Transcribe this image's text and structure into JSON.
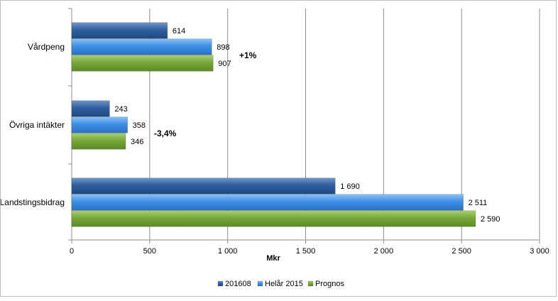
{
  "chart_data": {
    "type": "bar",
    "orientation": "horizontal",
    "categories": [
      "Vårdpeng",
      "Övriga intäkter",
      "Landstingsbidrag"
    ],
    "series": [
      {
        "name": "201608",
        "values": [
          614,
          243,
          1690
        ],
        "labels": [
          "614",
          "243",
          "1 690"
        ],
        "color": "#2f5f9e"
      },
      {
        "name": "Helår 2015",
        "values": [
          898,
          358,
          2511
        ],
        "labels": [
          "898",
          "358",
          "2 511"
        ],
        "color": "#3d8fe6"
      },
      {
        "name": "Prognos",
        "values": [
          907,
          346,
          2590
        ],
        "labels": [
          "907",
          "346",
          "2 590"
        ],
        "color": "#77a83a"
      }
    ],
    "annotations": [
      "+1%",
      "-3,4%",
      ""
    ],
    "xlabel": "Mkr",
    "xlim": [
      0,
      3000
    ],
    "ticks": [
      0,
      500,
      1000,
      1500,
      2000,
      2500,
      3000
    ],
    "tick_labels": [
      "0",
      "500",
      "1 000",
      "1 500",
      "2 000",
      "2 500",
      "3 000"
    ],
    "grid": "vertical",
    "legend": "bottom"
  }
}
